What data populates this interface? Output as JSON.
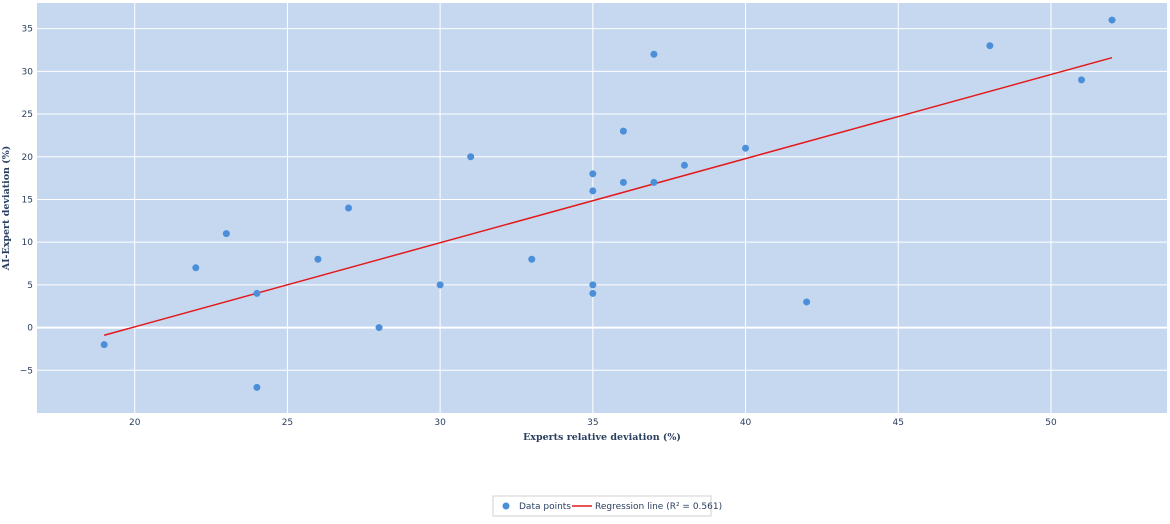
{
  "colors": {
    "plot_background": "#c6d8f0",
    "grid": "#ffffff",
    "points": "#4a8fd8",
    "regression_line": "#e31a1c",
    "text": "#2a3f5f",
    "legend_border": "#d0d0d0"
  },
  "chart_data": {
    "type": "scatter",
    "title": "",
    "xlabel": "Experts relative deviation (%)",
    "ylabel": "AI-Expert deviation (%)",
    "xlim": [
      16.8,
      53.8
    ],
    "ylim": [
      -10,
      38
    ],
    "xticks": [
      20,
      25,
      30,
      35,
      40,
      45,
      50
    ],
    "yticks": [
      -5,
      0,
      5,
      10,
      15,
      20,
      25,
      30,
      35
    ],
    "grid": true,
    "legend_position": "bottom-center",
    "series": [
      {
        "name": "Data points",
        "type": "scatter",
        "points": [
          [
            19,
            -2
          ],
          [
            22,
            7
          ],
          [
            23,
            11
          ],
          [
            24,
            4
          ],
          [
            24,
            -7
          ],
          [
            26,
            8
          ],
          [
            27,
            14
          ],
          [
            28,
            0
          ],
          [
            30,
            5
          ],
          [
            31,
            20
          ],
          [
            33,
            8
          ],
          [
            35,
            18
          ],
          [
            35,
            16
          ],
          [
            35,
            5
          ],
          [
            35,
            4
          ],
          [
            36,
            23
          ],
          [
            36,
            17
          ],
          [
            37,
            32
          ],
          [
            37,
            17
          ],
          [
            38,
            19
          ],
          [
            40,
            21
          ],
          [
            42,
            3
          ],
          [
            48,
            33
          ],
          [
            51,
            29
          ],
          [
            52,
            36
          ]
        ]
      },
      {
        "name": "Regression line (R² = 0.561)",
        "type": "line",
        "points": [
          [
            19,
            -0.9
          ],
          [
            52,
            31.6
          ]
        ]
      }
    ]
  }
}
